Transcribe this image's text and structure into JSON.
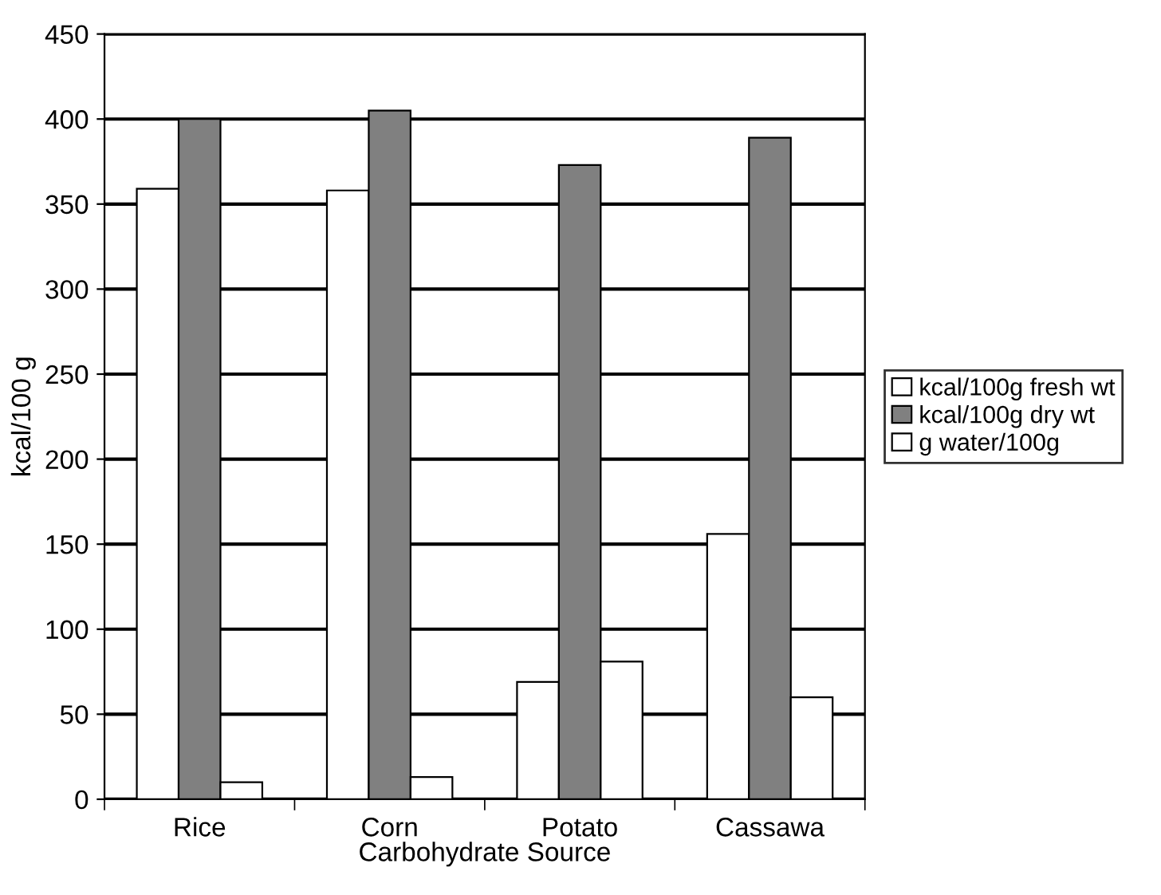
{
  "chart_data": {
    "type": "bar",
    "xlabel": "Carbohydrate Source",
    "ylabel": "kcal/100 g",
    "categories": [
      "Rice",
      "Corn",
      "Potato",
      "Cassawa"
    ],
    "series": [
      {
        "name": "kcal/100g fresh wt",
        "color": "#ffffff",
        "values": [
          359,
          358,
          69,
          156
        ]
      },
      {
        "name": "kcal/100g dry wt",
        "color": "#808080",
        "values": [
          400,
          405,
          373,
          389
        ]
      },
      {
        "name": "g water/100g",
        "color": "#ffffff",
        "values": [
          10,
          13,
          81,
          60
        ]
      }
    ],
    "ylim": [
      0,
      450
    ],
    "yticks": [
      0,
      50,
      100,
      150,
      200,
      250,
      300,
      350,
      400,
      450
    ],
    "grid": "y",
    "legend": "right"
  }
}
